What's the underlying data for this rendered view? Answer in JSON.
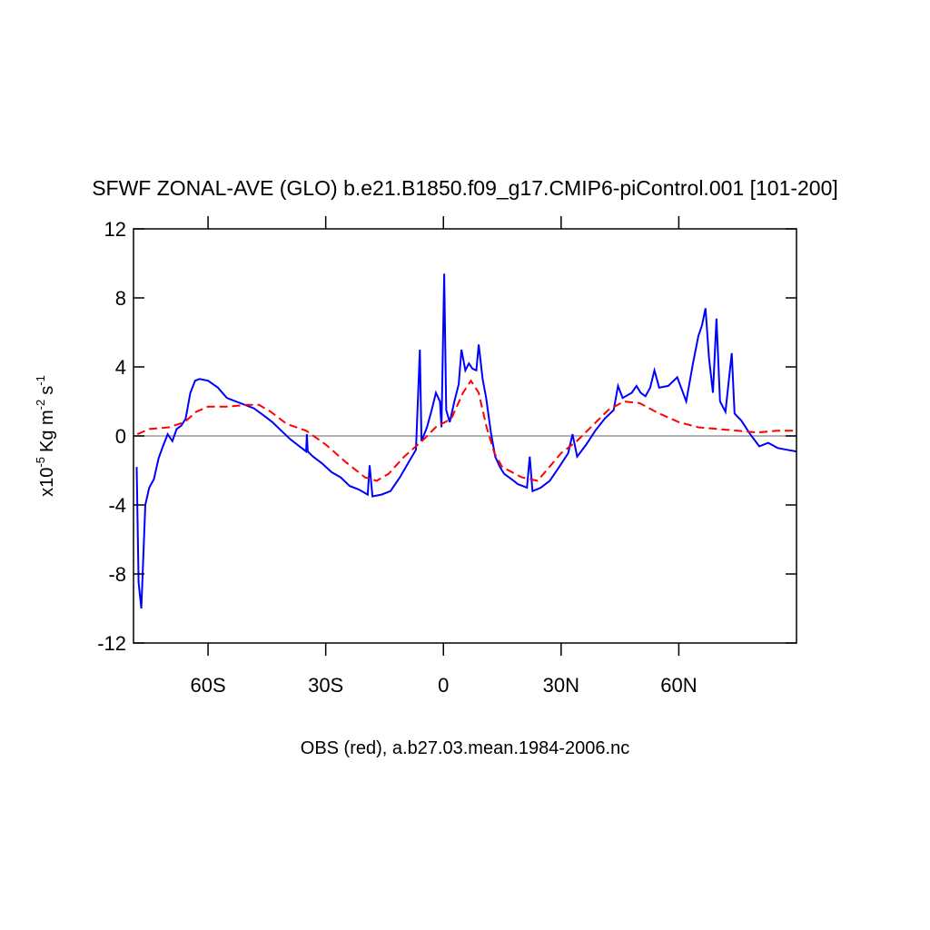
{
  "chart_data": {
    "type": "line",
    "title": "SFWF ZONAL-AVE (GLO) b.e21.B1850.f09_g17.CMIP6-piControl.001 [101-200]",
    "xlabel": "OBS (red), a.b27.03.mean.1984-2006.nc",
    "ylabel": [
      "x10",
      "-5",
      "Kg m",
      "-2",
      "s",
      "-1"
    ],
    "xlim": [
      -79,
      90
    ],
    "ylim": [
      -12,
      12
    ],
    "xticks": [
      {
        "value": -60,
        "label": "60S"
      },
      {
        "value": -30,
        "label": "30S"
      },
      0,
      {
        "value": 30,
        "label": "30N"
      },
      {
        "value": 60,
        "label": "60N"
      }
    ],
    "yticks": [
      12,
      8,
      4,
      0,
      -4,
      -8,
      -12
    ],
    "reference_line": 0,
    "series": [
      {
        "color": "#0000ff",
        "dash": "solid",
        "x": [
          -78.2,
          -77.7,
          -77,
          -76,
          -75,
          -73.8,
          -72.6,
          -71.5,
          -70.3,
          -69.1,
          -68,
          -66.8,
          -65.7,
          -64.5,
          -63.3,
          -62.2,
          -60,
          -57.5,
          -55.2,
          -52.9,
          -50.6,
          -48.3,
          -45.9,
          -43.6,
          -41.3,
          -39,
          -36.7,
          -35,
          -34.8,
          -34.6,
          -33.2,
          -30.9,
          -28.5,
          -26.2,
          -23.9,
          -21.6,
          -19.3,
          -18.8,
          -18.1,
          -15.8,
          -13.5,
          -11.1,
          -8.8,
          -7,
          -6,
          -5.6,
          -4.2,
          -3,
          -1.9,
          -0.9,
          -0.5,
          0.2,
          0.7,
          1.6,
          2.8,
          3.9,
          4.6,
          5.6,
          6.5,
          7.4,
          8.4,
          9,
          10,
          10.9,
          12.1,
          13.2,
          14.4,
          15.5,
          16.7,
          17.9,
          19,
          20.2,
          21.3,
          22,
          22.7,
          24.8,
          27.1,
          29.5,
          31.8,
          32.9,
          34.1,
          36.4,
          38.7,
          41.1,
          43.4,
          44.5,
          45.7,
          48,
          49.2,
          50.3,
          51.5,
          52.7,
          53.8,
          55,
          57.3,
          59.6,
          61.9,
          63.6,
          65,
          65.9,
          66.8,
          67.7,
          68.7,
          69.6,
          70.5,
          71.9,
          73.5,
          74.2,
          75.9,
          78.2,
          80.5,
          82.8,
          85.2,
          87.5,
          90
        ],
        "values": [
          -1.8,
          -8.5,
          -10,
          -4,
          -3,
          -2.5,
          -1.3,
          -0.6,
          0.1,
          -0.3,
          0.4,
          0.6,
          1.0,
          2.5,
          3.2,
          3.3,
          3.2,
          2.8,
          2.2,
          2.0,
          1.8,
          1.6,
          1.2,
          0.8,
          0.3,
          -0.2,
          -0.6,
          -0.9,
          0.1,
          -0.9,
          -1.2,
          -1.6,
          -2.1,
          -2.4,
          -2.9,
          -3.1,
          -3.4,
          -1.7,
          -3.5,
          -3.4,
          -3.2,
          -2.4,
          -1.5,
          -0.8,
          5.0,
          -0.3,
          0.5,
          1.5,
          2.5,
          2.0,
          0.5,
          9.4,
          1.5,
          0.8,
          2.0,
          3.0,
          5.0,
          3.8,
          4.2,
          3.9,
          3.8,
          5.3,
          3.3,
          2.2,
          0.2,
          -1.2,
          -1.8,
          -2.2,
          -2.4,
          -2.6,
          -2.8,
          -2.9,
          -3.0,
          -1.2,
          -3.2,
          -3.0,
          -2.6,
          -1.8,
          -1.0,
          0.1,
          -1.2,
          -0.5,
          0.3,
          1.0,
          1.5,
          2.9,
          2.2,
          2.5,
          2.9,
          2.5,
          2.3,
          2.8,
          3.8,
          2.8,
          2.9,
          3.4,
          2.0,
          4.2,
          5.8,
          6.4,
          7.4,
          4.5,
          2.5,
          6.8,
          2.0,
          1.4,
          4.8,
          1.3,
          0.9,
          0.1,
          -0.6,
          -0.4,
          -0.7,
          -0.8,
          -0.9
        ]
      },
      {
        "color": "#ff0000",
        "dash": "dashed",
        "x": [
          -78,
          -75,
          -70,
          -66,
          -63,
          -60,
          -55,
          -50,
          -47,
          -44,
          -40,
          -35,
          -30,
          -25,
          -20,
          -17,
          -14,
          -10,
          -5,
          -2,
          2,
          5,
          7,
          9,
          11,
          13,
          15,
          20,
          24,
          27,
          30,
          34,
          38,
          42,
          46,
          50,
          55,
          60,
          65,
          70,
          75,
          80,
          85,
          90
        ],
        "values": [
          0.1,
          0.4,
          0.5,
          0.8,
          1.4,
          1.7,
          1.7,
          1.8,
          1.8,
          1.4,
          0.7,
          0.3,
          -0.5,
          -1.5,
          -2.4,
          -2.6,
          -2.2,
          -1.2,
          -0.2,
          0.5,
          1.0,
          2.5,
          3.2,
          2.5,
          0.5,
          -1.0,
          -1.8,
          -2.4,
          -2.6,
          -1.8,
          -1.0,
          -0.3,
          0.6,
          1.5,
          2.0,
          1.9,
          1.3,
          0.8,
          0.5,
          0.4,
          0.3,
          0.2,
          0.3,
          0.3
        ]
      }
    ]
  }
}
